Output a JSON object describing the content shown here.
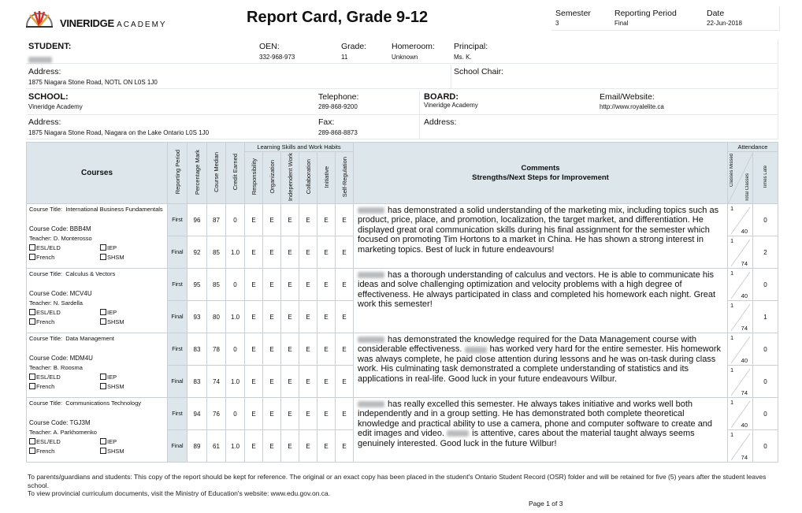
{
  "header": {
    "brand_main": "VINERIDGE",
    "brand_sub": "ACADEMY",
    "title": "Report Card, Grade 9-12",
    "semester_label": "Semester",
    "semester": "3",
    "period_label": "Reporting Period",
    "period": "Final",
    "date_label": "Date",
    "date": "22-Jun-2018"
  },
  "student": {
    "label": "STUDENT:",
    "oen_label": "OEN:",
    "oen": "332-968-973",
    "grade_label": "Grade:",
    "grade": "11",
    "homeroom_label": "Homeroom:",
    "homeroom": "Unknown",
    "principal_label": "Principal:",
    "principal": "Ms. K.",
    "address_label": "Address:",
    "address": "1875 Niagara Stone Road, NOTL ON L0S 1J0",
    "chair_label": "School Chair:"
  },
  "school": {
    "label": "SCHOOL:",
    "name": "Vineridge Academy",
    "tel_label": "Telephone:",
    "tel": "289-868-9200",
    "board_label": "BOARD:",
    "board": "Vineridge Academy",
    "web_label": "Email/Website:",
    "web": "http://www.royalelite.ca",
    "address_label": "Address:",
    "address": "1875 Niagara Stone Road, Niagara on the Lake Ontario  L0S 1J0",
    "fax_label": "Fax:",
    "fax": "289-868-8873",
    "board_address_label": "Address:"
  },
  "table": {
    "courses_header": "Courses",
    "reporting_period": "Reporting Period",
    "pct_mark": "Percentage Mark",
    "median": "Course Median",
    "credit": "Credit Earned",
    "lswh": "Learning Skills and Work Habits",
    "skills": [
      "Responsibility",
      "Organization",
      "Independent Work",
      "Collaboration",
      "Initiative",
      "Self-Regulation"
    ],
    "comments_header": "Comments",
    "comments_sub": "Strengths/Next Steps for Improvement",
    "attendance": "Attendance",
    "classes_missed": "Classes Missed",
    "total_classes": "Total Classes",
    "times_late": "Times Late",
    "title_label": "Course Title:",
    "code_label": "Course Code:",
    "teacher_label": "Teacher:",
    "checkboxes": [
      "ESL/ELD",
      "IEP",
      "French",
      "SHSM"
    ]
  },
  "courses": [
    {
      "title": "International Business Fundamentals",
      "code": "BBB4M",
      "teacher": "D. Monterosso",
      "rows": [
        {
          "period": "First",
          "mark": "96",
          "median": "87",
          "credit": "0",
          "skills": [
            "E",
            "E",
            "E",
            "E",
            "E",
            "E"
          ],
          "missed": "1",
          "total": "40",
          "late": "0"
        },
        {
          "period": "Final",
          "mark": "92",
          "median": "85",
          "credit": "1.0",
          "skills": [
            "E",
            "E",
            "E",
            "E",
            "E",
            "E"
          ],
          "missed": "1",
          "total": "74",
          "late": "2"
        }
      ],
      "comment": [
        "has demonstrated a solid understanding of the marketing mix, including topics such as product, price, place, and promotion, localization, the target market, and differentiation. He displayed great oral communication skills during his final assignment for the semester which focused on promoting Tim Hortons to a market in China. He has shown a strong interest in marketing topics. Best of luck in future endeavours!"
      ]
    },
    {
      "title": "Calculus & Vectors",
      "code": "MCV4U",
      "teacher": "N. Sardella",
      "rows": [
        {
          "period": "First",
          "mark": "95",
          "median": "85",
          "credit": "0",
          "skills": [
            "E",
            "E",
            "E",
            "E",
            "E",
            "E"
          ],
          "missed": "1",
          "total": "40",
          "late": "0"
        },
        {
          "period": "Final",
          "mark": "93",
          "median": "80",
          "credit": "1.0",
          "skills": [
            "E",
            "E",
            "E",
            "E",
            "E",
            "E"
          ],
          "missed": "1",
          "total": "74",
          "late": "1"
        }
      ],
      "comment": [
        "has a thorough understanding of calculus and vectors. He is able to communicate his ideas and solve challenging optimization and velocity problems with a high degree of effectiveness. He always participated in class and completed his homework each night. Great work this semester!"
      ]
    },
    {
      "title": "Data Management",
      "code": "MDM4U",
      "teacher": "B. Roosma",
      "rows": [
        {
          "period": "First",
          "mark": "83",
          "median": "78",
          "credit": "0",
          "skills": [
            "E",
            "E",
            "E",
            "E",
            "E",
            "E"
          ],
          "missed": "1",
          "total": "40",
          "late": "0"
        },
        {
          "period": "Final",
          "mark": "83",
          "median": "74",
          "credit": "1.0",
          "skills": [
            "E",
            "E",
            "E",
            "E",
            "E",
            "E"
          ],
          "missed": "1",
          "total": "74",
          "late": "0"
        }
      ],
      "comment": [
        "has demonstrated the knowledge required for the Data Management course with considerable effectiveness.",
        "has worked very hard for the entire semester.  His homework was always complete, he paid close attention during lessons and he was on-task during class work.  His culminating task demonstrated a complete understanding of statistics and its applications in real-life.  Good luck in your future endeavours Wilbur."
      ]
    },
    {
      "title": "Communications Technology",
      "code": "TGJ3M",
      "teacher": "A. Parkhomenko",
      "rows": [
        {
          "period": "First",
          "mark": "94",
          "median": "76",
          "credit": "0",
          "skills": [
            "E",
            "E",
            "E",
            "E",
            "E",
            "E"
          ],
          "missed": "1",
          "total": "40",
          "late": "0"
        },
        {
          "period": "Final",
          "mark": "89",
          "median": "61",
          "credit": "1.0",
          "skills": [
            "E",
            "E",
            "E",
            "E",
            "E",
            "E"
          ],
          "missed": "1",
          "total": "74",
          "late": "0"
        }
      ],
      "comment": [
        "has really excelled this semester. He always takes initiative and works well both independently and in a group setting. He has demonstrated both complete theoretical knowledge and practical ability to use a camera, phone and computer software to create and edit images and video.",
        "is attentive, cares about the material taught always seems genuinely interested. Good luck in the future Wilbur!"
      ]
    }
  ],
  "footer": {
    "line1": "To parents/guardians and students: This copy of the report should be kept for reference. The original or an exact copy has been placed in the student's Ontario Student Record (OSR) folder and will be retained for five (5) years after the student leaves school.",
    "line2": "To view provincial curriculum documents, visit the Ministry of Education's website: www.edu.gov.on.ca.",
    "page": "Page 1 of 3"
  }
}
